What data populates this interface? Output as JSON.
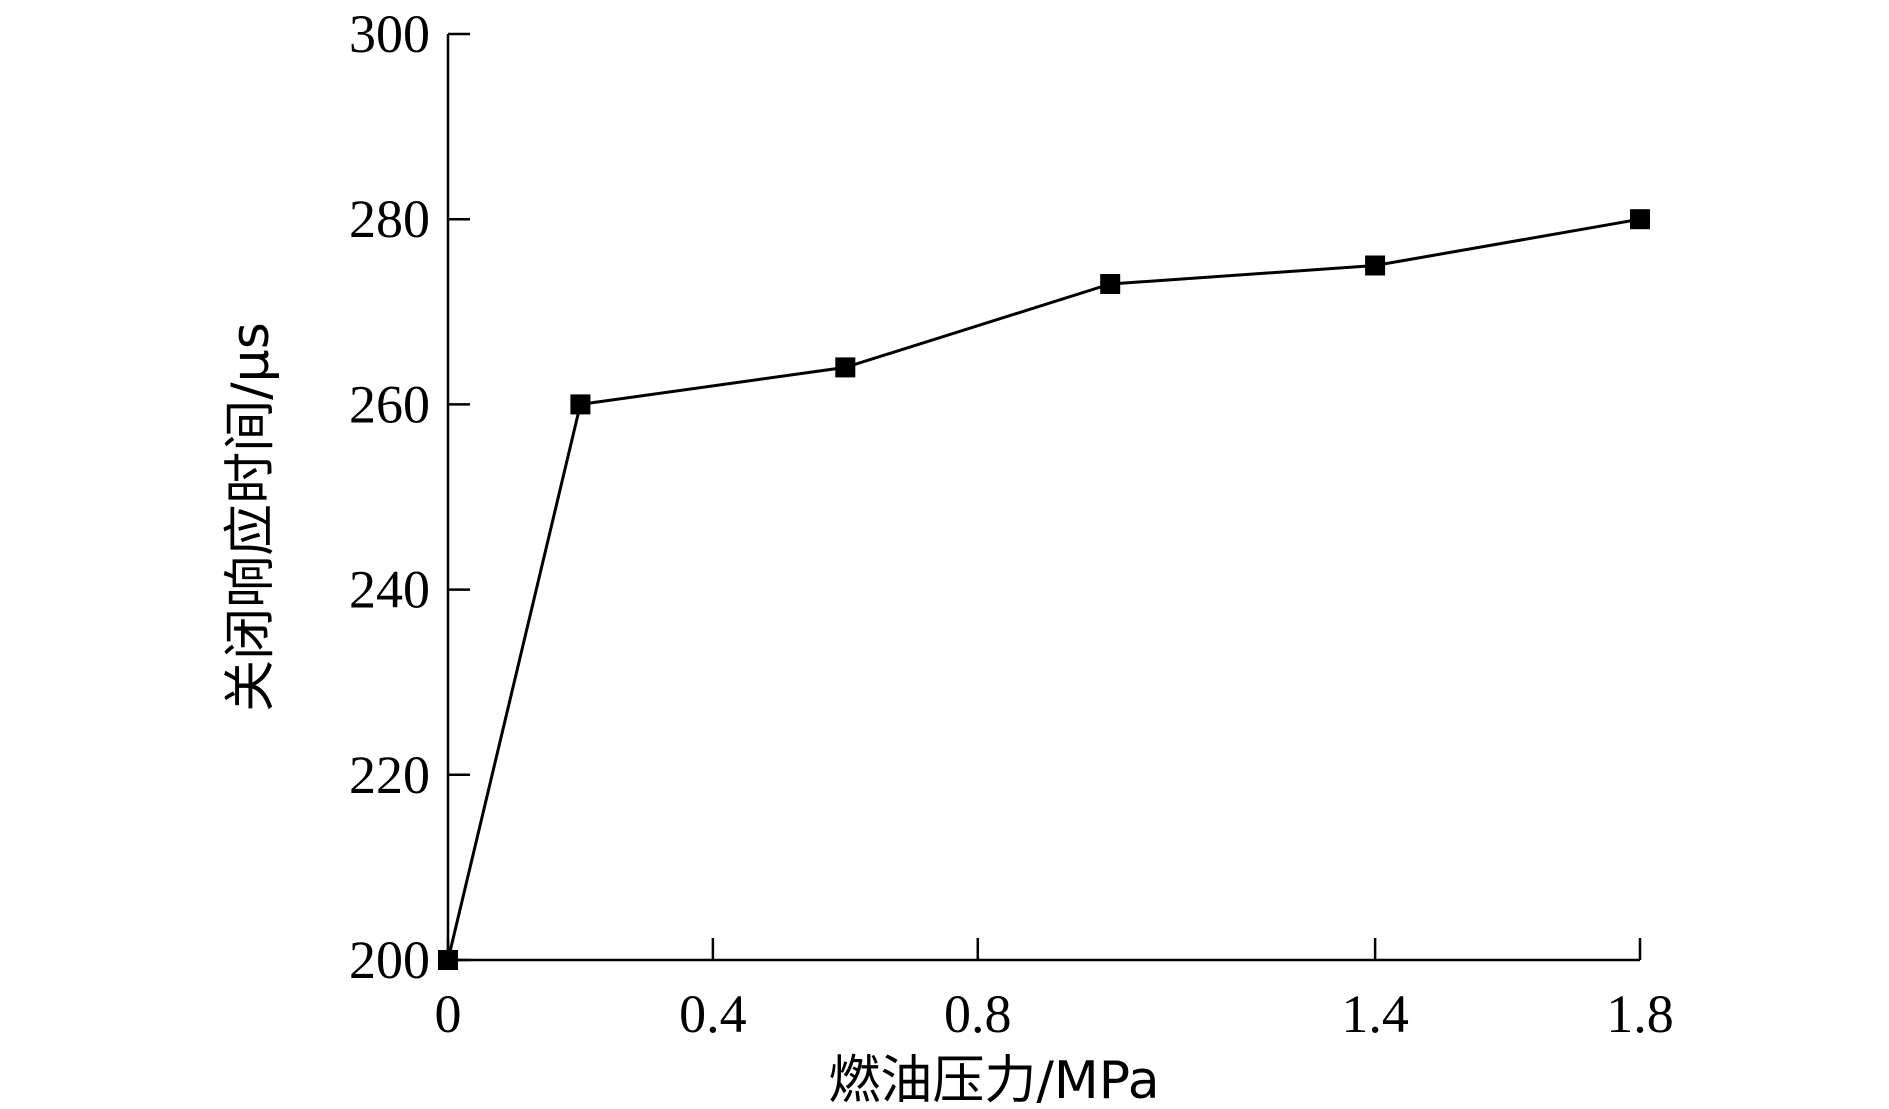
{
  "chart_data": {
    "type": "line",
    "xlabel": "燃油压力/MPa",
    "ylabel": "关闭响应时间/μs",
    "xlim": [
      0,
      1.8
    ],
    "ylim": [
      200,
      300
    ],
    "xticks": [
      0,
      0.4,
      0.8,
      1.4,
      1.8
    ],
    "xtick_labels": [
      "0",
      "0.4",
      "0.8",
      "1.4",
      "1.8"
    ],
    "yticks": [
      200,
      220,
      240,
      260,
      280,
      300
    ],
    "ytick_labels": [
      "200",
      "220",
      "240",
      "260",
      "280",
      "300"
    ],
    "grid": false,
    "series": [
      {
        "marker": "square",
        "color": "#000000",
        "x": [
          0,
          0.2,
          0.6,
          1.0,
          1.4,
          1.8
        ],
        "y": [
          200,
          260,
          264,
          273,
          275,
          280
        ]
      }
    ]
  }
}
